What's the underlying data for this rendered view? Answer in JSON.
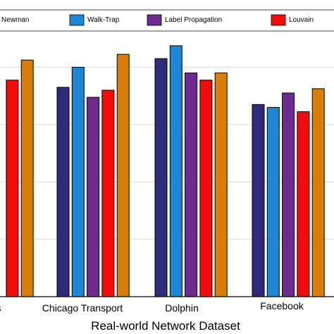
{
  "chart_data": {
    "type": "bar",
    "xlabel": "Real-world Network Dataset",
    "ylabel": "",
    "title": "",
    "categories": [
      "s",
      "Chicago Transport",
      "Dolphin",
      "Facebook"
    ],
    "ylim": [
      0,
      1
    ],
    "y_gridlines": [
      0.2,
      0.4,
      0.6,
      0.8
    ],
    "grid": "horizontal",
    "legend_position": "top",
    "series": [
      {
        "name": "Newman",
        "color": "#2E2B7C",
        "values": [
          0.775,
          0.73,
          0.83,
          0.67
        ]
      },
      {
        "name": "Walk-Trap",
        "color": "#1F86D6",
        "values": [
          null,
          0.8,
          0.875,
          0.66
        ]
      },
      {
        "name": "Label Propagation",
        "color": "#6E2A8E",
        "values": [
          null,
          0.695,
          0.78,
          0.71
        ]
      },
      {
        "name": "Louvain",
        "color": "#F50B0B",
        "values": [
          0.755,
          0.72,
          0.755,
          0.645
        ]
      },
      {
        "name": "",
        "color": "#D97D0B",
        "values": [
          0.825,
          0.845,
          0.78,
          0.725
        ]
      }
    ]
  }
}
